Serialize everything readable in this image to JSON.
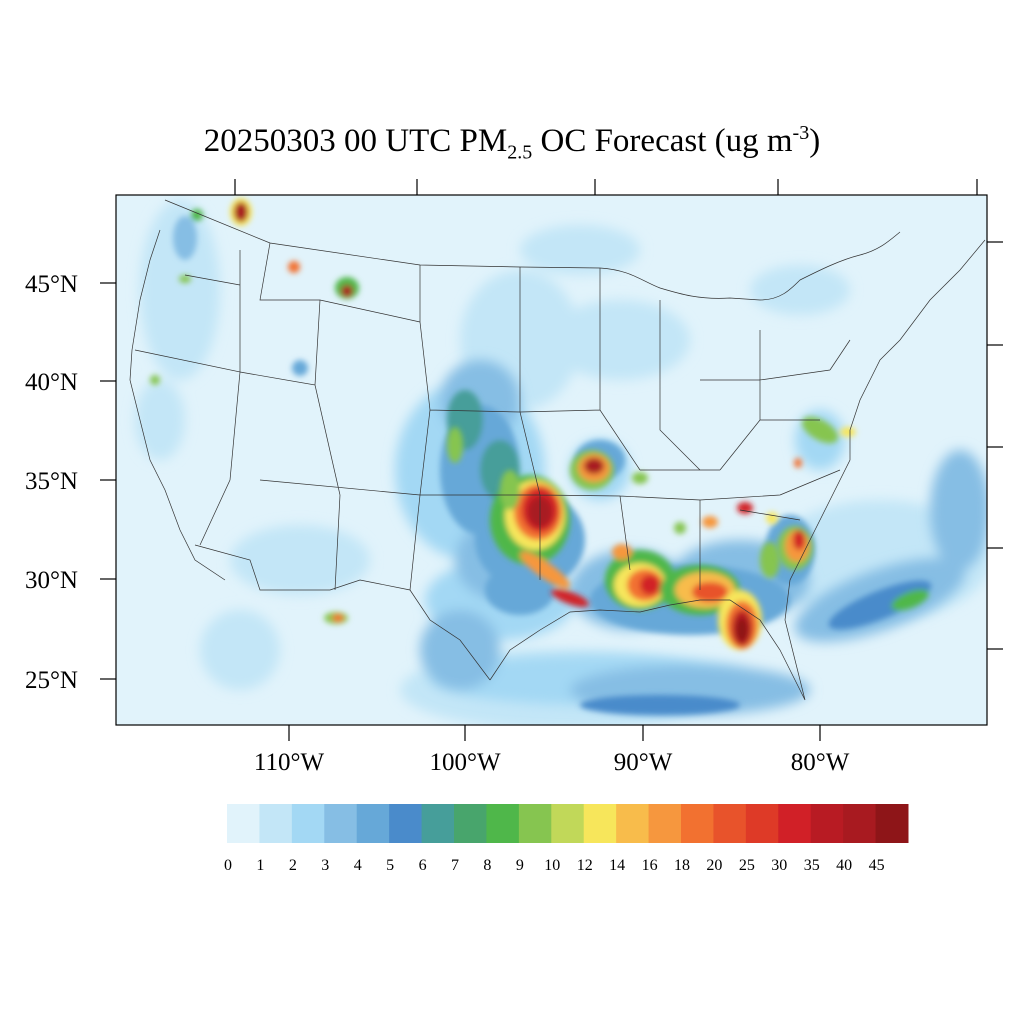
{
  "title": {
    "prefix": "20250303 00 UTC PM",
    "subscript": "2.5",
    "middle": " OC Forecast (ug m",
    "superscript": "-3",
    "suffix": ")"
  },
  "latitude_labels": [
    "45°N",
    "40°N",
    "35°N",
    "30°N",
    "25°N"
  ],
  "longitude_labels": [
    "110°W",
    "100°W",
    "90°W",
    "80°W"
  ],
  "colorbar": {
    "colors": [
      "#e1f3fb",
      "#c3e6f7",
      "#a3d8f4",
      "#86bee4",
      "#66a8d8",
      "#4a8bcb",
      "#469e9a",
      "#48a56c",
      "#4fb74a",
      "#86c550",
      "#c1d859",
      "#f7e65b",
      "#f8bc4b",
      "#f6973e",
      "#f27130",
      "#e8532b",
      "#de3a27",
      "#d12027",
      "#b81b23",
      "#a81a20",
      "#8e1518"
    ],
    "labels": [
      "0",
      "1",
      "2",
      "3",
      "4",
      "5",
      "6",
      "7",
      "8",
      "9",
      "10",
      "12",
      "14",
      "16",
      "18",
      "20",
      "25",
      "30",
      "35",
      "40",
      "45"
    ]
  },
  "map_data": {
    "variable": "PM2.5 OC",
    "units": "ug m-3",
    "valid": "20250303 00 UTC",
    "lon_range": [
      -120,
      -71
    ],
    "lat_range": [
      22.8,
      49.5
    ],
    "lat_ticks": [
      45,
      40,
      35,
      30,
      25
    ],
    "lon_ticks": [
      -110,
      -100,
      -90,
      -80
    ],
    "plumes": [
      {
        "region": "northern Idaho",
        "lon": -113,
        "lat": 48.8,
        "level": 45
      },
      {
        "region": "western Washington",
        "lon": -118.5,
        "lat": 46.5,
        "level": 9
      },
      {
        "region": "southwest Montana",
        "lon": -107.5,
        "lat": 44.5,
        "level": 40
      },
      {
        "region": "central Montana",
        "lon": -110.2,
        "lat": 46.2,
        "level": 25
      },
      {
        "region": "Oklahoma–Kansas",
        "lon": -96.2,
        "lat": 34.6,
        "level": 45
      },
      {
        "region": "southeast Texas",
        "lon": -95,
        "lat": 29.8,
        "level": 35
      },
      {
        "region": "Missouri",
        "lon": -93,
        "lat": 35.8,
        "level": 45
      },
      {
        "region": "Louisiana–Mississippi",
        "lon": -89.5,
        "lat": 29.8,
        "level": 35
      },
      {
        "region": "Florida panhandle",
        "lon": -85.3,
        "lat": 29.5,
        "level": 45
      },
      {
        "region": "South Carolina",
        "lon": -81,
        "lat": 31.8,
        "level": 30
      },
      {
        "region": "Georgia",
        "lon": -83.8,
        "lat": 32.8,
        "level": 25
      },
      {
        "region": "New Mexico",
        "lon": -107.5,
        "lat": 28.2,
        "level": 20
      },
      {
        "region": "Virginia",
        "lon": -80.5,
        "lat": 38.5,
        "level": 12
      },
      {
        "region": "Atlantic swath",
        "lon": -76,
        "lat": 29.8,
        "level": 8
      }
    ]
  }
}
